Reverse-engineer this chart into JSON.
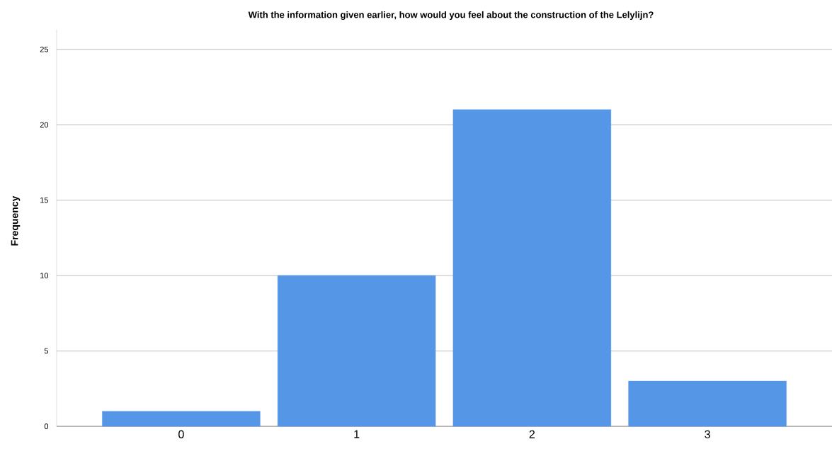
{
  "chart_data": {
    "type": "bar",
    "title": "With the information given earlier, how would you feel about the construction of the Lelylijn?",
    "ylabel": "Frequency",
    "categories": [
      "0",
      "1",
      "2",
      "3"
    ],
    "values": [
      1,
      10,
      21,
      3
    ],
    "color": "#5596e6",
    "ylim": [
      0,
      26.3
    ],
    "yticks": [
      0,
      5,
      10,
      15,
      20,
      25
    ],
    "grid": "y"
  }
}
